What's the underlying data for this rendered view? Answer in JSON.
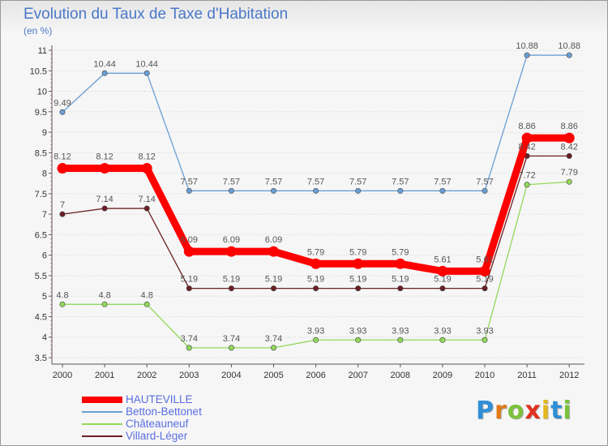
{
  "header": {
    "title": "Evolution du Taux de Taxe d'Habitation",
    "unit": "(en %)"
  },
  "brand": {
    "letters": [
      "P",
      "r",
      "o",
      "x",
      "i",
      "t",
      "i"
    ],
    "colors": [
      "#2f8fd6",
      "#e07a1a",
      "#7cc23c",
      "#e0301e",
      "#e3b81a",
      "#2f8fd6",
      "#7cc23c"
    ]
  },
  "chart_data": {
    "type": "line",
    "title": "Evolution du Taux de Taxe d'Habitation",
    "ylabel": "(en %)",
    "xlabel": "",
    "x": [
      "2000",
      "2001",
      "2002",
      "2003",
      "2004",
      "2005",
      "2006",
      "2007",
      "2008",
      "2009",
      "2010",
      "2011",
      "2012"
    ],
    "ylim": [
      3.5,
      11
    ],
    "yticks": [
      3.5,
      4,
      4.5,
      5,
      5.5,
      6,
      6.5,
      7,
      7.5,
      8,
      8.5,
      9,
      9.5,
      10,
      10.5,
      11
    ],
    "ytick_labels": [
      "3.5",
      "4",
      "4.5",
      "5",
      "5.5",
      "6",
      "6.5",
      "7",
      "7.5",
      "8",
      "8.5",
      "9",
      "9.5",
      "10",
      "10.5",
      "11"
    ],
    "grid": "horizontal",
    "legend_position": "bottom-left",
    "series": [
      {
        "name": "HAUTEVILLE",
        "color": "#ff0000",
        "emphasis": "thick",
        "values": [
          8.12,
          8.12,
          8.12,
          6.09,
          6.09,
          6.09,
          5.79,
          5.79,
          5.79,
          5.61,
          5.61,
          8.86,
          8.86
        ],
        "labels": [
          "8.12",
          "8.12",
          "8.12",
          "6.09",
          "6.09",
          "6.09",
          "5.79",
          "5.79",
          "5.79",
          "5.61",
          "5.61",
          "8.86",
          "8.86"
        ]
      },
      {
        "name": "Betton-Bettonet",
        "color": "#6a9ed4",
        "values": [
          9.49,
          10.44,
          10.44,
          7.57,
          7.57,
          7.57,
          7.57,
          7.57,
          7.57,
          7.57,
          7.57,
          10.88,
          10.88
        ],
        "labels": [
          "9.49",
          "10.44",
          "10.44",
          "7.57",
          "7.57",
          "7.57",
          "7.57",
          "7.57",
          "7.57",
          "7.57",
          "7.57",
          "10.88",
          "10.88"
        ]
      },
      {
        "name": "Châteauneuf",
        "color": "#92d85a",
        "values": [
          4.8,
          4.8,
          4.8,
          3.74,
          3.74,
          3.74,
          3.93,
          3.93,
          3.93,
          3.93,
          3.93,
          7.72,
          7.79
        ],
        "labels": [
          "4.8",
          "4.8",
          "4.8",
          "3.74",
          "3.74",
          "3.74",
          "3.93",
          "3.93",
          "3.93",
          "3.93",
          "3.93",
          "7.72",
          "7.79"
        ]
      },
      {
        "name": "Villard-Léger",
        "color": "#6b1f24",
        "values": [
          7,
          7.14,
          7.14,
          5.19,
          5.19,
          5.19,
          5.19,
          5.19,
          5.19,
          5.19,
          5.19,
          8.42,
          8.42
        ],
        "labels": [
          "7",
          "7.14",
          "7.14",
          "5.19",
          "5.19",
          "5.19",
          "5.19",
          "5.19",
          "5.19",
          "5.19",
          "5.19",
          "8.42",
          "8.42"
        ]
      }
    ]
  }
}
